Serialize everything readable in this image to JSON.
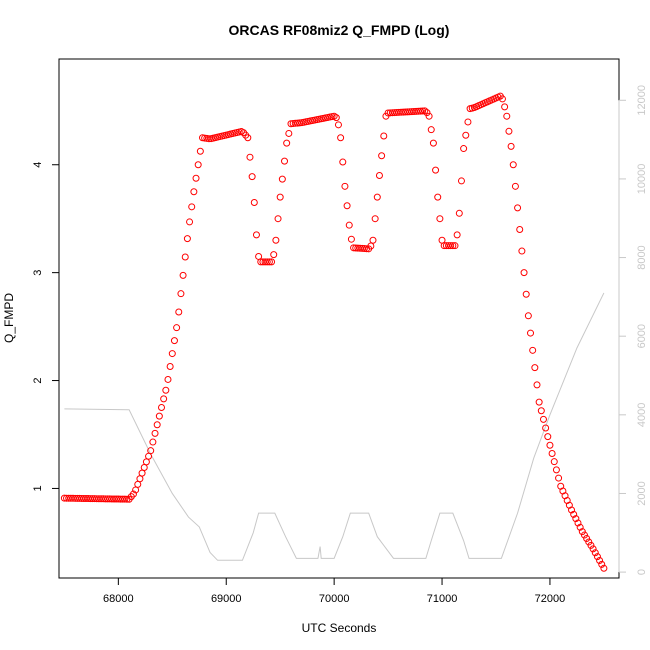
{
  "chart_data": {
    "type": "scatter",
    "title": "ORCAS RF08miz2 Q_FMPD (Log)",
    "xlabel": "UTC Seconds",
    "ylabel": "Q_FMPD",
    "xlim": [
      67450,
      72640
    ],
    "ylim": [
      0.17,
      4.98
    ],
    "y2lim": [
      -150,
      13050
    ],
    "x_ticks": [
      {
        "value": 68000,
        "label": "68000"
      },
      {
        "value": 69000,
        "label": "69000"
      },
      {
        "value": 70000,
        "label": "70000"
      },
      {
        "value": 71000,
        "label": "71000"
      },
      {
        "value": 72000,
        "label": "72000"
      }
    ],
    "y_ticks": [
      {
        "value": 1,
        "label": "1"
      },
      {
        "value": 2,
        "label": "2"
      },
      {
        "value": 3,
        "label": "3"
      },
      {
        "value": 4,
        "label": "4"
      }
    ],
    "y2_ticks": [
      {
        "value": 0,
        "label": "0"
      },
      {
        "value": 2000,
        "label": "2000"
      },
      {
        "value": 4000,
        "label": "4000"
      },
      {
        "value": 6000,
        "label": "6000"
      },
      {
        "value": 8000,
        "label": "8000"
      },
      {
        "value": 10000,
        "label": "10000"
      },
      {
        "value": 12000,
        "label": "12000"
      }
    ],
    "series": [
      {
        "kind": "points",
        "axis": "left",
        "color": "#ff0000",
        "step": 20,
        "knots": [
          [
            67500,
            0.91
          ],
          [
            68100,
            0.9
          ],
          [
            68150,
            0.96
          ],
          [
            68300,
            1.35
          ],
          [
            68450,
            1.95
          ],
          [
            68550,
            2.55
          ],
          [
            68650,
            3.4
          ],
          [
            68700,
            3.75
          ],
          [
            68780,
            4.25
          ],
          [
            68850,
            4.24
          ],
          [
            69150,
            4.31
          ],
          [
            69200,
            4.25
          ],
          [
            69250,
            3.8
          ],
          [
            69290,
            3.2
          ],
          [
            69310,
            3.1
          ],
          [
            69420,
            3.1
          ],
          [
            69450,
            3.2
          ],
          [
            69500,
            3.7
          ],
          [
            69560,
            4.2
          ],
          [
            69600,
            4.38
          ],
          [
            69700,
            4.39
          ],
          [
            70000,
            4.45
          ],
          [
            70030,
            4.43
          ],
          [
            70060,
            4.25
          ],
          [
            70100,
            3.8
          ],
          [
            70150,
            3.35
          ],
          [
            70180,
            3.23
          ],
          [
            70330,
            3.22
          ],
          [
            70360,
            3.3
          ],
          [
            70420,
            3.9
          ],
          [
            70480,
            4.45
          ],
          [
            70500,
            4.48
          ],
          [
            70850,
            4.5
          ],
          [
            70880,
            4.45
          ],
          [
            70920,
            4.2
          ],
          [
            70960,
            3.7
          ],
          [
            71000,
            3.3
          ],
          [
            71010,
            3.25
          ],
          [
            71130,
            3.25
          ],
          [
            71160,
            3.55
          ],
          [
            71200,
            4.15
          ],
          [
            71260,
            4.52
          ],
          [
            71300,
            4.53
          ],
          [
            71550,
            4.64
          ],
          [
            71570,
            4.58
          ],
          [
            71600,
            4.45
          ],
          [
            71650,
            4.1
          ],
          [
            71700,
            3.6
          ],
          [
            71800,
            2.6
          ],
          [
            71900,
            1.8
          ],
          [
            72000,
            1.4
          ],
          [
            72100,
            1.02
          ],
          [
            72200,
            0.8
          ],
          [
            72300,
            0.6
          ],
          [
            72400,
            0.44
          ],
          [
            72500,
            0.26
          ]
        ]
      },
      {
        "kind": "line",
        "axis": "right",
        "color": "#c8c8c8",
        "points": [
          [
            67500,
            4150
          ],
          [
            68100,
            4130
          ],
          [
            68300,
            3000
          ],
          [
            68500,
            2000
          ],
          [
            68650,
            1400
          ],
          [
            68750,
            1150
          ],
          [
            68850,
            500
          ],
          [
            68920,
            300
          ],
          [
            69050,
            300
          ],
          [
            69150,
            300
          ],
          [
            69250,
            1000
          ],
          [
            69300,
            1500
          ],
          [
            69450,
            1500
          ],
          [
            69550,
            900
          ],
          [
            69650,
            350
          ],
          [
            69850,
            350
          ],
          [
            69870,
            650
          ],
          [
            69880,
            350
          ],
          [
            70000,
            350
          ],
          [
            70080,
            900
          ],
          [
            70150,
            1500
          ],
          [
            70320,
            1500
          ],
          [
            70400,
            900
          ],
          [
            70550,
            350
          ],
          [
            70850,
            350
          ],
          [
            70900,
            800
          ],
          [
            70980,
            1500
          ],
          [
            71100,
            1500
          ],
          [
            71200,
            800
          ],
          [
            71250,
            350
          ],
          [
            71550,
            350
          ],
          [
            71700,
            1500
          ],
          [
            71850,
            2900
          ],
          [
            72000,
            4000
          ],
          [
            72250,
            5700
          ],
          [
            72500,
            7100
          ]
        ]
      }
    ]
  }
}
